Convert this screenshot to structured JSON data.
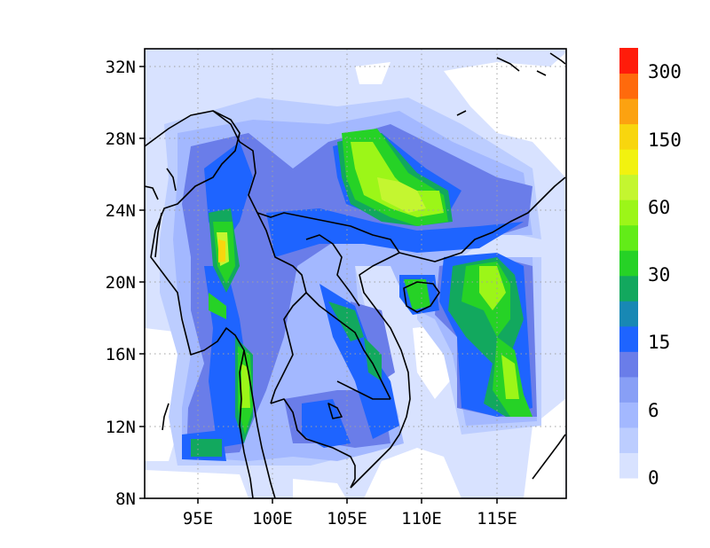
{
  "map": {
    "x_ticks": [
      "95E",
      "100E",
      "105E",
      "110E",
      "115E"
    ],
    "y_ticks": [
      "8N",
      "12N",
      "16N",
      "20N",
      "24N",
      "28N",
      "32N"
    ],
    "lon_range": [
      91.5,
      119.5
    ],
    "lat_range": [
      8,
      32.5
    ],
    "grid": "dotted"
  },
  "colorbar": {
    "labels": [
      "0",
      "6",
      "15",
      "30",
      "60",
      "150",
      "300"
    ],
    "colors": [
      "#d8e2ff",
      "#bccdff",
      "#a3b8ff",
      "#889ff6",
      "#6a7de9",
      "#1e64ff",
      "#1888b4",
      "#12a85e",
      "#26d226",
      "#62ec18",
      "#9cf618",
      "#c4f630",
      "#f2f20f",
      "#f8d60e",
      "#fca210",
      "#ff6a0c",
      "#ff1c0a"
    ]
  },
  "colors": {
    "background": "#d8e2ff",
    "coastline": "#000000",
    "gridline": "#a0a0a0"
  }
}
